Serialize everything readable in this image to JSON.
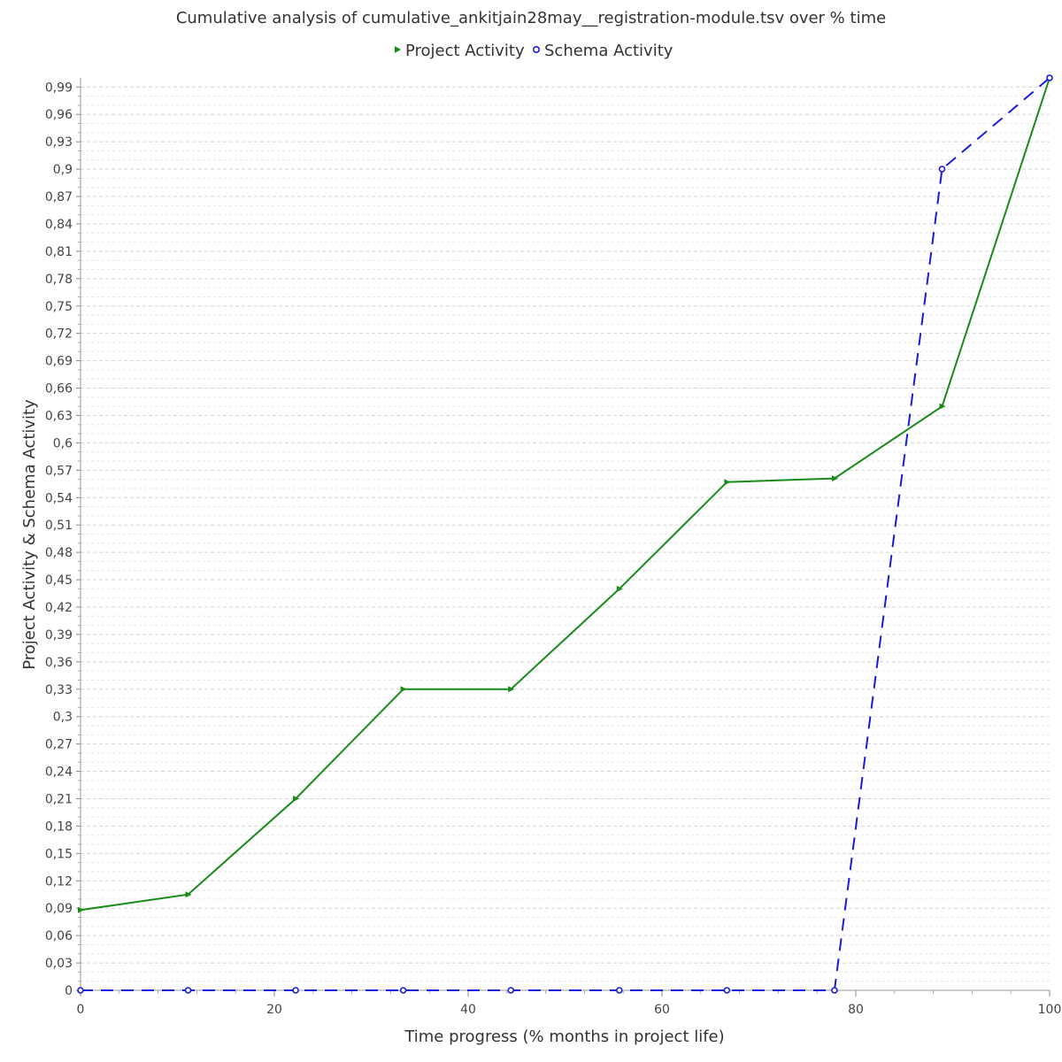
{
  "chart_data": {
    "type": "line",
    "title": "Cumulative analysis of cumulative_ankitjain28may__registration-module.tsv over % time",
    "xlabel": "Time progress (% months in project life)",
    "ylabel": "Project Activity & Schema Activity",
    "xlim": [
      0,
      100
    ],
    "ylim": [
      0,
      1.0
    ],
    "x_ticks": [
      0,
      20,
      40,
      60,
      80,
      100
    ],
    "x_tick_labels": [
      "0",
      "20",
      "40",
      "60",
      "80",
      "100"
    ],
    "y_tick_labels": [
      "0",
      "0,03",
      "0,06",
      "0,09",
      "0,12",
      "0,15",
      "0,18",
      "0,21",
      "0,24",
      "0,27",
      "0,3",
      "0,33",
      "0,36",
      "0,39",
      "0,42",
      "0,45",
      "0,48",
      "0,51",
      "0,54",
      "0,57",
      "0,6",
      "0,63",
      "0,66",
      "0,69",
      "0,72",
      "0,75",
      "0,78",
      "0,81",
      "0,84",
      "0,87",
      "0,9",
      "0,93",
      "0,96",
      "0,99"
    ],
    "grid": true,
    "legend_position": "top-center",
    "series": [
      {
        "name": "Project Activity",
        "color": "#1a8a1a",
        "line_style": "solid",
        "marker": "triangle-right",
        "x": [
          0,
          11.1,
          22.2,
          33.3,
          44.4,
          55.6,
          66.7,
          77.8,
          88.9,
          100
        ],
        "y": [
          0.088,
          0.105,
          0.21,
          0.33,
          0.33,
          0.44,
          0.557,
          0.561,
          0.64,
          1.0
        ]
      },
      {
        "name": "Schema Activity",
        "color": "#1a1adf",
        "line_style": "dashed",
        "marker": "circle",
        "x": [
          0,
          11.1,
          22.2,
          33.3,
          44.4,
          55.6,
          66.7,
          77.8,
          88.9,
          100
        ],
        "y": [
          0,
          0,
          0,
          0,
          0,
          0,
          0,
          0,
          0.9,
          1.0
        ]
      }
    ]
  }
}
